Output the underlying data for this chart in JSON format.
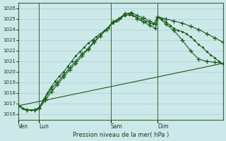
{
  "xlabel": "Pression niveau de la mer( hPa )",
  "bg_color": "#cde8e8",
  "grid_color": "#a0c8c8",
  "line_color": "#1a5c1a",
  "xlim": [
    0,
    100
  ],
  "ylim": [
    1015.5,
    1026.5
  ],
  "yticks": [
    1016,
    1017,
    1018,
    1019,
    1020,
    1021,
    1022,
    1023,
    1024,
    1025,
    1026
  ],
  "xtick_labels": [
    "Ven",
    "Lun",
    "Sam",
    "Dim"
  ],
  "xtick_positions": [
    0,
    10,
    45,
    68
  ],
  "vline_positions": [
    0,
    10,
    45,
    68
  ],
  "straight_line": {
    "x": [
      0,
      100
    ],
    "y": [
      1016.8,
      1020.8
    ]
  },
  "line_a_x": [
    0,
    2,
    4,
    6,
    8,
    10,
    12,
    14,
    16,
    18,
    20,
    22,
    24,
    26,
    28,
    30,
    32,
    34,
    36,
    38,
    40,
    42,
    44,
    46,
    48,
    50,
    52,
    54,
    56,
    58,
    60,
    62,
    64,
    66,
    68,
    70,
    72,
    74,
    76,
    78,
    80,
    82,
    84,
    86,
    88,
    90,
    92,
    94,
    96,
    98,
    100
  ],
  "line_a_y": [
    1016.8,
    1016.5,
    1016.4,
    1016.4,
    1016.4,
    1016.6,
    1017.3,
    1018.0,
    1018.6,
    1019.1,
    1019.6,
    1020.0,
    1020.5,
    1021.0,
    1021.5,
    1021.9,
    1022.3,
    1022.7,
    1023.0,
    1023.3,
    1023.6,
    1023.9,
    1024.2,
    1024.6,
    1024.8,
    1025.1,
    1025.3,
    1025.4,
    1025.3,
    1025.1,
    1025.0,
    1024.8,
    1024.6,
    1024.5,
    1025.2,
    1025.0,
    1024.7,
    1024.4,
    1024.1,
    1023.9,
    1023.8,
    1023.6,
    1023.3,
    1023.0,
    1022.6,
    1022.3,
    1021.9,
    1021.6,
    1021.3,
    1021.0,
    1020.7
  ],
  "line_b_x": [
    0,
    4,
    8,
    10,
    13,
    16,
    19,
    22,
    25,
    28,
    31,
    34,
    37,
    40,
    43,
    46,
    49,
    52,
    55,
    58,
    61,
    64,
    67,
    68,
    72,
    76,
    80,
    84,
    88,
    92,
    96,
    100
  ],
  "line_b_y": [
    1016.8,
    1016.4,
    1016.4,
    1016.6,
    1017.5,
    1018.4,
    1019.0,
    1019.7,
    1020.4,
    1021.0,
    1021.7,
    1022.2,
    1022.9,
    1023.4,
    1024.0,
    1024.7,
    1025.0,
    1025.4,
    1025.6,
    1025.3,
    1025.1,
    1024.8,
    1024.5,
    1025.2,
    1025.0,
    1024.8,
    1024.6,
    1024.3,
    1024.0,
    1023.6,
    1023.2,
    1022.8
  ],
  "line_c_x": [
    0,
    4,
    8,
    10,
    13,
    16,
    19,
    22,
    25,
    28,
    31,
    34,
    37,
    40,
    43,
    46,
    49,
    52,
    55,
    58,
    61,
    64,
    67,
    68,
    72,
    76,
    80,
    84,
    88,
    92,
    96,
    100
  ],
  "line_c_y": [
    1016.8,
    1016.4,
    1016.4,
    1016.5,
    1017.3,
    1018.1,
    1018.8,
    1019.5,
    1020.2,
    1020.8,
    1021.5,
    1022.1,
    1022.8,
    1023.4,
    1024.0,
    1024.7,
    1025.0,
    1025.5,
    1025.5,
    1025.0,
    1024.7,
    1024.4,
    1024.1,
    1025.2,
    1024.5,
    1023.9,
    1023.0,
    1022.0,
    1021.2,
    1021.0,
    1020.9,
    1020.8
  ]
}
